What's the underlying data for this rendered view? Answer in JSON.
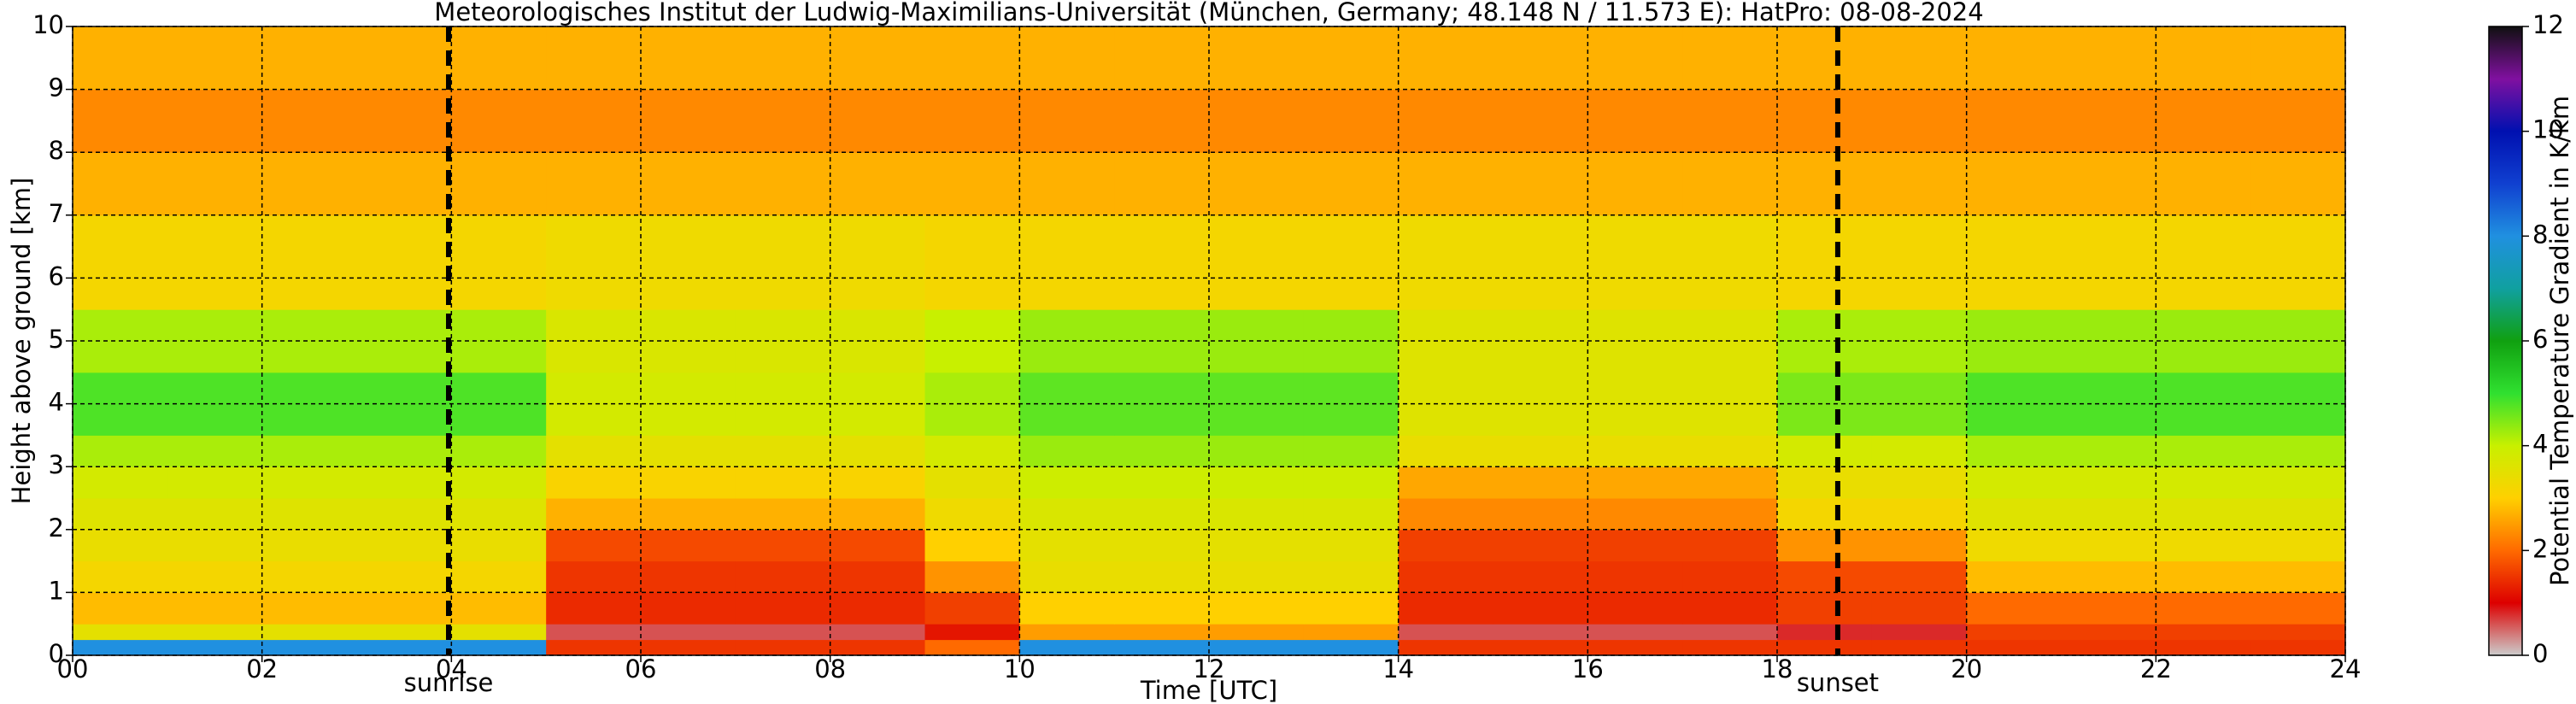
{
  "chart_data": {
    "type": "heatmap",
    "title": "Meteorologisches Institut der Ludwig-Maximilians-Universität (München, Germany; 48.148 N / 11.573 E):    HatPro: 08-08-2024",
    "x_label": "Time [UTC]",
    "y_label": "Height above ground [km]",
    "colorbar_label": "Potential Temperature Gradient in K/km",
    "xbins": [
      0,
      1,
      2,
      3,
      4,
      5,
      6,
      7,
      8,
      9,
      10,
      11,
      12,
      13,
      14,
      15,
      16,
      17,
      18,
      19,
      20,
      21,
      22,
      23,
      24
    ],
    "ybins": [
      0,
      0.25,
      0.5,
      1,
      1.5,
      2,
      2.5,
      3,
      3.5,
      4.5,
      5.5,
      7,
      8,
      9,
      10
    ],
    "values": [
      [
        8,
        8,
        8,
        8,
        8,
        1.5,
        1.5,
        1.5,
        1.5,
        2.0,
        8,
        8,
        8,
        8,
        1.5,
        1.5,
        1.5,
        1.5,
        1.5,
        1.5,
        1.5,
        1.5,
        1.5,
        1.5
      ],
      [
        3.5,
        3.5,
        3.5,
        3.5,
        3.5,
        0.6,
        0.6,
        0.6,
        0.6,
        1.2,
        2.5,
        2.5,
        2.5,
        2.5,
        0.6,
        0.6,
        0.6,
        0.6,
        0.8,
        0.8,
        1.6,
        1.6,
        1.6,
        1.6
      ],
      [
        2.8,
        2.8,
        2.8,
        2.8,
        2.8,
        1.4,
        1.4,
        1.4,
        1.4,
        1.6,
        3.0,
        3.0,
        3.0,
        3.0,
        1.4,
        1.4,
        1.4,
        1.4,
        1.6,
        1.6,
        2.0,
        2.0,
        2.0,
        2.0
      ],
      [
        3.2,
        3.2,
        3.2,
        3.2,
        3.2,
        1.5,
        1.5,
        1.5,
        1.5,
        2.4,
        3.4,
        3.4,
        3.4,
        3.4,
        1.5,
        1.5,
        1.5,
        1.5,
        1.7,
        1.7,
        2.8,
        2.8,
        2.8,
        2.8
      ],
      [
        3.4,
        3.4,
        3.4,
        3.4,
        3.4,
        1.7,
        1.7,
        1.7,
        1.7,
        3.0,
        3.5,
        3.5,
        3.5,
        3.5,
        1.6,
        1.6,
        1.6,
        1.6,
        2.4,
        2.4,
        3.3,
        3.3,
        3.3,
        3.3
      ],
      [
        3.6,
        3.6,
        3.6,
        3.6,
        3.6,
        2.7,
        2.7,
        2.7,
        2.7,
        3.3,
        3.7,
        3.7,
        3.7,
        3.7,
        2.3,
        2.3,
        2.3,
        2.3,
        3.2,
        3.2,
        3.6,
        3.6,
        3.6,
        3.6
      ],
      [
        3.8,
        3.8,
        3.8,
        3.8,
        3.8,
        3.1,
        3.1,
        3.1,
        3.1,
        3.5,
        3.9,
        3.9,
        3.9,
        3.9,
        2.6,
        2.6,
        2.6,
        2.6,
        3.4,
        3.4,
        3.8,
        3.8,
        3.8,
        3.8
      ],
      [
        4.2,
        4.2,
        4.2,
        4.2,
        4.2,
        3.5,
        3.5,
        3.5,
        3.5,
        3.8,
        4.3,
        4.3,
        4.3,
        4.3,
        3.4,
        3.4,
        3.4,
        3.4,
        3.8,
        3.8,
        4.2,
        4.2,
        4.2,
        4.2
      ],
      [
        4.8,
        4.8,
        4.8,
        4.8,
        4.8,
        3.8,
        3.8,
        3.8,
        3.8,
        4.2,
        4.7,
        4.7,
        4.7,
        4.7,
        3.6,
        3.6,
        3.6,
        3.6,
        4.5,
        4.5,
        4.8,
        4.8,
        4.8,
        4.8
      ],
      [
        4.2,
        4.2,
        4.2,
        4.2,
        4.2,
        3.7,
        3.7,
        3.7,
        3.7,
        4.0,
        4.3,
        4.3,
        4.3,
        4.3,
        3.6,
        3.6,
        3.6,
        3.6,
        4.2,
        4.2,
        4.3,
        4.3,
        4.3,
        4.3
      ],
      [
        3.2,
        3.2,
        3.2,
        3.2,
        3.2,
        3.3,
        3.3,
        3.3,
        3.3,
        3.2,
        3.2,
        3.2,
        3.2,
        3.2,
        3.3,
        3.3,
        3.3,
        3.3,
        3.2,
        3.2,
        3.2,
        3.2,
        3.2,
        3.2
      ],
      [
        2.7,
        2.7,
        2.7,
        2.7,
        2.7,
        2.7,
        2.7,
        2.7,
        2.7,
        2.7,
        2.7,
        2.7,
        2.7,
        2.7,
        2.7,
        2.7,
        2.7,
        2.7,
        2.7,
        2.7,
        2.7,
        2.7,
        2.7,
        2.7
      ],
      [
        2.3,
        2.3,
        2.3,
        2.3,
        2.3,
        2.3,
        2.3,
        2.3,
        2.3,
        2.3,
        2.3,
        2.3,
        2.3,
        2.3,
        2.3,
        2.3,
        2.3,
        2.3,
        2.3,
        2.3,
        2.3,
        2.3,
        2.3,
        2.3
      ],
      [
        2.7,
        2.7,
        2.7,
        2.7,
        2.7,
        2.7,
        2.7,
        2.7,
        2.7,
        2.7,
        2.7,
        2.7,
        2.7,
        2.7,
        2.7,
        2.7,
        2.7,
        2.7,
        2.7,
        2.7,
        2.7,
        2.7,
        2.7,
        2.7
      ]
    ],
    "colors": [
      "#cccccc",
      "#dd0000",
      "#ff6a00",
      "#ffd000",
      "#c8f000",
      "#30e030",
      "#10a010",
      "#10a0a0",
      "#2090e0",
      "#1040d0",
      "#0010b0",
      "#8010a0",
      "#101010"
    ],
    "xlim": [
      0,
      24
    ],
    "xticks": [
      {
        "value": 0,
        "label": "00"
      },
      {
        "value": 2,
        "label": "02"
      },
      {
        "value": 4,
        "label": "04"
      },
      {
        "value": 6,
        "label": "06"
      },
      {
        "value": 8,
        "label": "08"
      },
      {
        "value": 10,
        "label": "10"
      },
      {
        "value": 12,
        "label": "12"
      },
      {
        "value": 14,
        "label": "14"
      },
      {
        "value": 16,
        "label": "16"
      },
      {
        "value": 18,
        "label": "18"
      },
      {
        "value": 20,
        "label": "20"
      },
      {
        "value": 22,
        "label": "22"
      },
      {
        "value": 24,
        "label": "24"
      }
    ],
    "ylim": [
      0,
      10
    ],
    "yticks": [
      0,
      1,
      2,
      3,
      4,
      5,
      6,
      7,
      8,
      9,
      10
    ],
    "clim": [
      0,
      12
    ],
    "cticks": [
      0,
      2,
      4,
      6,
      8,
      10,
      12
    ],
    "grid": true,
    "annotations": [
      {
        "x": 3.97,
        "label": "sunrise"
      },
      {
        "x": 18.64,
        "label": "sunset"
      }
    ]
  }
}
